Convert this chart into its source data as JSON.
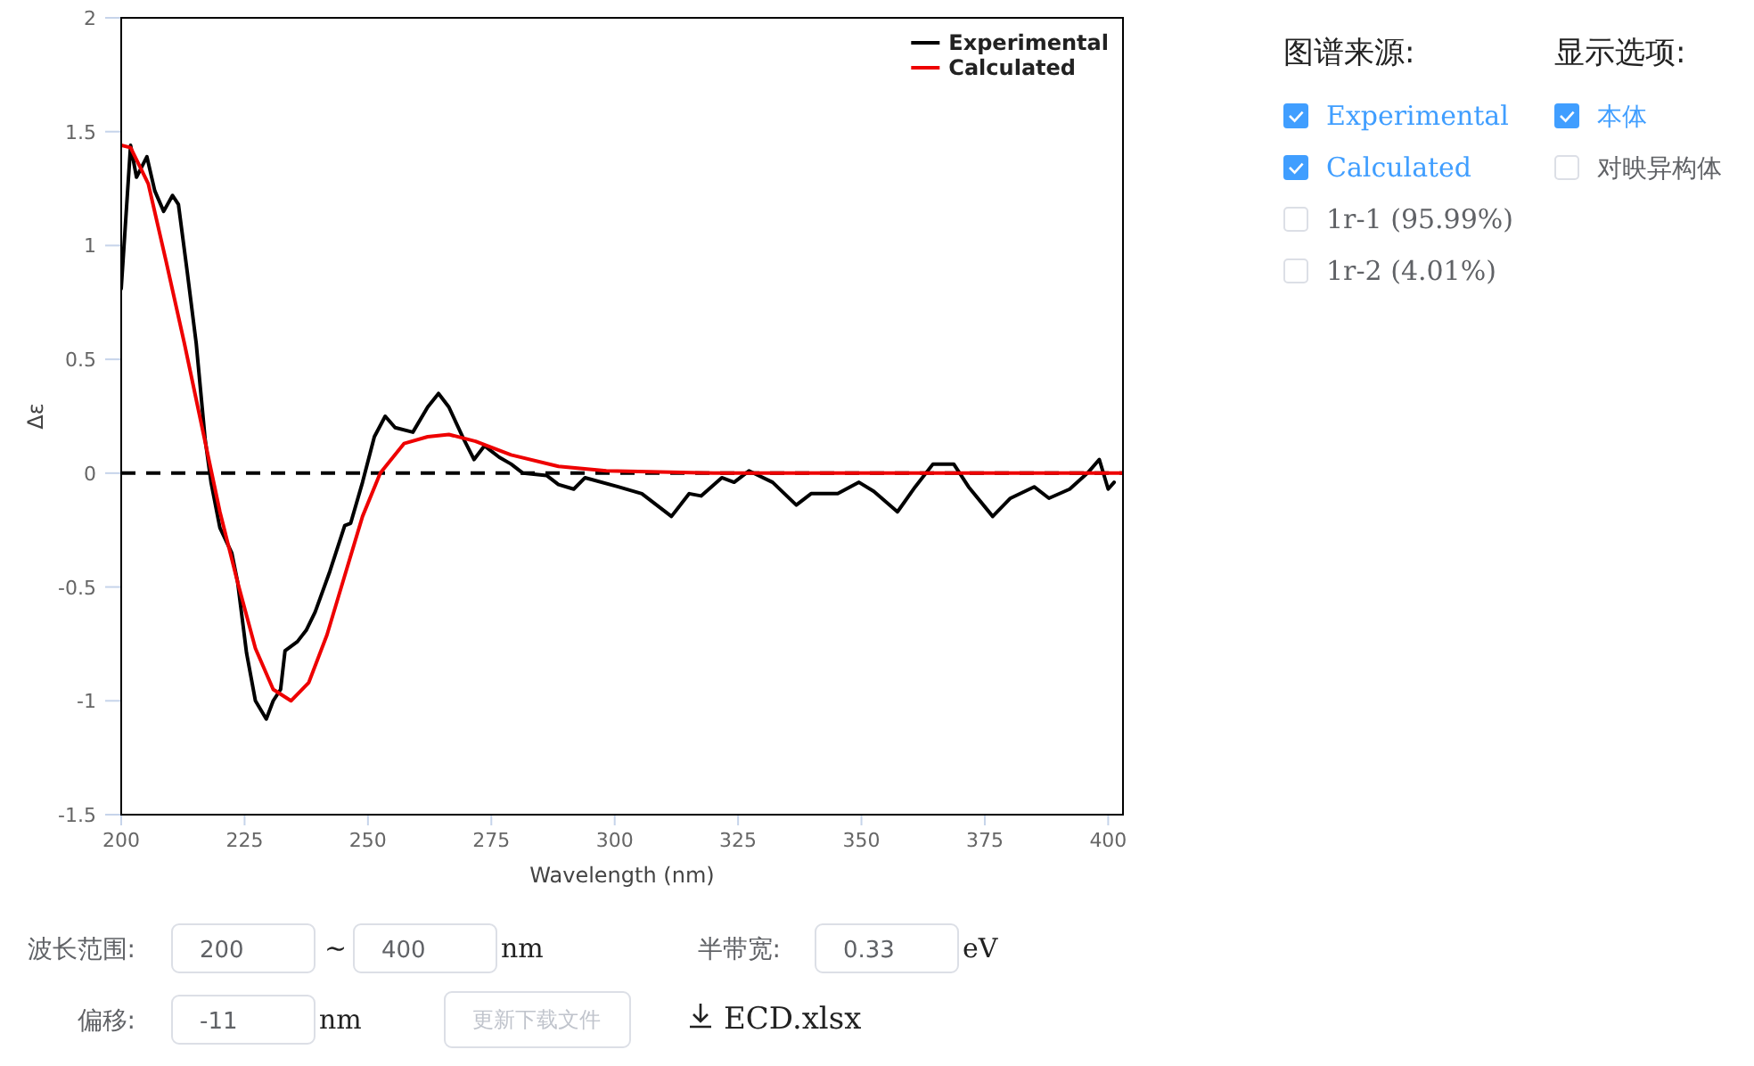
{
  "chart_data": [
    {
      "type": "line",
      "xlabel": "Wavelength (nm)",
      "ylabel": "Δε",
      "xlim": [
        200,
        403
      ],
      "xticks": [
        200,
        225,
        250,
        275,
        300,
        325,
        350,
        375,
        400
      ],
      "ylim": [
        -1.5,
        2
      ],
      "yticks": [
        -1.5,
        -1,
        -0.5,
        0,
        0.5,
        1,
        1.5,
        2
      ],
      "legend": "top right",
      "grid": false,
      "line_style": "solid",
      "marker": "none",
      "ref_lines": [
        {
          "axis": "y",
          "value": 0,
          "color": "#000000",
          "line_style": "dashed"
        }
      ],
      "series": [
        {
          "name": "Experimental",
          "color": "#000000",
          "x": [
            200,
            201.9,
            203.1,
            205.2,
            206.8,
            208.6,
            210.4,
            211.6,
            213.4,
            215.2,
            217,
            218.2,
            220,
            222.4,
            223.6,
            225.4,
            227.2,
            229.4,
            230.8,
            232.3,
            233.2,
            235.7,
            237.5,
            239.3,
            242.3,
            245.3,
            246.5,
            248.9,
            251.3,
            253.5,
            255.5,
            259.1,
            262.1,
            264.3,
            266.4,
            269.4,
            271.5,
            273.6,
            276.6,
            279,
            281.4,
            286.2,
            288.6,
            291.7,
            294,
            300.7,
            305.5,
            311.5,
            315.1,
            317.5,
            321.7,
            324.2,
            327.2,
            332,
            336.8,
            339.8,
            345.2,
            349.5,
            352.5,
            357.3,
            360.9,
            364.5,
            368.7,
            371.7,
            376.6,
            380.2,
            385,
            388,
            392.2,
            395.8,
            398.2,
            400,
            401.2
          ],
          "values": [
            0.81,
            1.44,
            1.3,
            1.39,
            1.24,
            1.15,
            1.22,
            1.18,
            0.88,
            0.57,
            0.15,
            -0.04,
            -0.24,
            -0.35,
            -0.48,
            -0.79,
            -1.0,
            -1.08,
            -1.0,
            -0.95,
            -0.78,
            -0.74,
            -0.69,
            -0.61,
            -0.43,
            -0.23,
            -0.22,
            -0.04,
            0.16,
            0.25,
            0.2,
            0.18,
            0.29,
            0.35,
            0.29,
            0.15,
            0.06,
            0.12,
            0.07,
            0.04,
            0.0,
            -0.01,
            -0.05,
            -0.07,
            -0.02,
            -0.06,
            -0.09,
            -0.19,
            -0.09,
            -0.1,
            -0.02,
            -0.04,
            0.01,
            -0.04,
            -0.14,
            -0.09,
            -0.09,
            -0.04,
            -0.08,
            -0.17,
            -0.06,
            0.04,
            0.04,
            -0.06,
            -0.19,
            -0.11,
            -0.06,
            -0.11,
            -0.07,
            0.0,
            0.06,
            -0.07,
            -0.04
          ]
        },
        {
          "name": "Calculated",
          "color": "#ee0000",
          "x": [
            200,
            201.9,
            205.5,
            209.1,
            212.8,
            216.4,
            220,
            223.6,
            227.2,
            230.8,
            234.4,
            238,
            241.7,
            245.3,
            248.9,
            252.5,
            257.3,
            262.1,
            266.4,
            271.8,
            279,
            288.6,
            298.3,
            320,
            350,
            403
          ],
          "values": [
            1.44,
            1.43,
            1.27,
            0.93,
            0.57,
            0.2,
            -0.17,
            -0.48,
            -0.77,
            -0.95,
            -1.0,
            -0.92,
            -0.71,
            -0.45,
            -0.19,
            0.0,
            0.13,
            0.16,
            0.17,
            0.14,
            0.08,
            0.03,
            0.01,
            0,
            0,
            0
          ]
        }
      ]
    },
    {
      "type": "other",
      "annotations": [
        "图谱来源:",
        "Experimental",
        "Calculated",
        "1r-1 (95.99%)",
        "1r-2 (4.01%)",
        "显示选项:",
        "本体",
        "对映异构体",
        "波长范围:",
        "200",
        "~",
        "400",
        "nm",
        "半带宽:",
        "0.33",
        "eV",
        "偏移:",
        "-11",
        "nm",
        "更新下载文件",
        "ECD.xlsx"
      ]
    }
  ]
}
